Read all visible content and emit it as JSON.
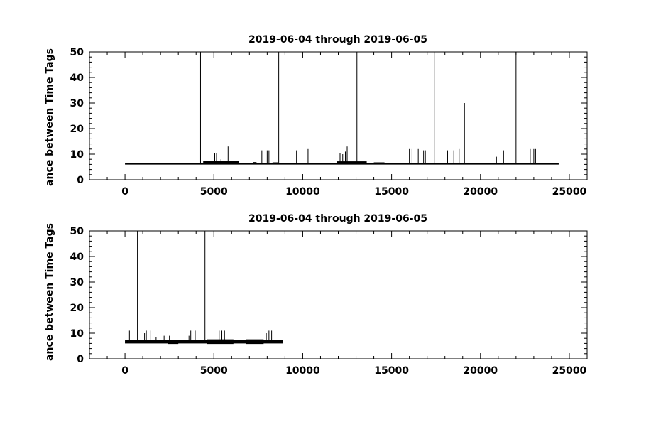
{
  "chart_data": [
    {
      "type": "line",
      "title": "2019-06-04 through 2019-06-05",
      "ylabel": "ance between Time Tags",
      "xlim": [
        -2000,
        26000
      ],
      "ylim": [
        0,
        50
      ],
      "x_ticks": [
        "0",
        "5000",
        "10000",
        "15000",
        "20000",
        "25000"
      ],
      "y_ticks": [
        "0",
        "10",
        "20",
        "30",
        "40",
        "50"
      ],
      "baseline": {
        "x_start": 0,
        "x_end": 24400,
        "y": 6.2
      },
      "spikes": [
        {
          "x": 4250,
          "y": 50
        },
        {
          "x": 8650,
          "y": 50
        },
        {
          "x": 13050,
          "y": 50
        },
        {
          "x": 17400,
          "y": 50
        },
        {
          "x": 22000,
          "y": 50
        },
        {
          "x": 19100,
          "y": 30
        },
        {
          "x": 5800,
          "y": 13
        },
        {
          "x": 12500,
          "y": 13
        },
        {
          "x": 5050,
          "y": 10.5
        },
        {
          "x": 5150,
          "y": 10.5
        },
        {
          "x": 5400,
          "y": 8
        },
        {
          "x": 7700,
          "y": 11.5
        },
        {
          "x": 8000,
          "y": 11.5
        },
        {
          "x": 8100,
          "y": 11.5
        },
        {
          "x": 9650,
          "y": 11.5
        },
        {
          "x": 10300,
          "y": 12
        },
        {
          "x": 12100,
          "y": 10.5
        },
        {
          "x": 12250,
          "y": 10
        },
        {
          "x": 12400,
          "y": 11
        },
        {
          "x": 16000,
          "y": 12
        },
        {
          "x": 16150,
          "y": 12
        },
        {
          "x": 16500,
          "y": 12
        },
        {
          "x": 16800,
          "y": 11.5
        },
        {
          "x": 16900,
          "y": 11.5
        },
        {
          "x": 18150,
          "y": 11.5
        },
        {
          "x": 18500,
          "y": 11.5
        },
        {
          "x": 18800,
          "y": 12
        },
        {
          "x": 20900,
          "y": 9
        },
        {
          "x": 21300,
          "y": 11.5
        },
        {
          "x": 22800,
          "y": 12
        },
        {
          "x": 23000,
          "y": 12
        },
        {
          "x": 23100,
          "y": 12
        }
      ],
      "noise_bands": [
        {
          "x_start": 4400,
          "x_end": 6400,
          "y_low": 6.2,
          "y_high": 7.4
        },
        {
          "x_start": 7200,
          "x_end": 7400,
          "y_low": 6.2,
          "y_high": 6.9
        },
        {
          "x_start": 8300,
          "x_end": 8600,
          "y_low": 6.2,
          "y_high": 6.8
        },
        {
          "x_start": 11900,
          "x_end": 13600,
          "y_low": 6.2,
          "y_high": 7.2
        },
        {
          "x_start": 14000,
          "x_end": 14600,
          "y_low": 6.2,
          "y_high": 6.8
        }
      ]
    },
    {
      "type": "line",
      "title": "2019-06-04 through 2019-06-05",
      "ylabel": "ance between Time Tags",
      "xlim": [
        -2000,
        26000
      ],
      "ylim": [
        0,
        50
      ],
      "x_ticks": [
        "0",
        "5000",
        "10000",
        "15000",
        "20000",
        "25000"
      ],
      "y_ticks": [
        "0",
        "10",
        "20",
        "30",
        "40",
        "50"
      ],
      "baseline": {
        "x_start": 0,
        "x_end": 8900,
        "y": 6.5
      },
      "spikes": [
        {
          "x": 700,
          "y": 50
        },
        {
          "x": 4500,
          "y": 50
        },
        {
          "x": 250,
          "y": 11
        },
        {
          "x": 1100,
          "y": 10
        },
        {
          "x": 1200,
          "y": 11
        },
        {
          "x": 1450,
          "y": 11
        },
        {
          "x": 1750,
          "y": 8.5
        },
        {
          "x": 2200,
          "y": 9
        },
        {
          "x": 2500,
          "y": 9
        },
        {
          "x": 3600,
          "y": 9
        },
        {
          "x": 3700,
          "y": 11
        },
        {
          "x": 3950,
          "y": 11
        },
        {
          "x": 5300,
          "y": 11
        },
        {
          "x": 5450,
          "y": 11
        },
        {
          "x": 5600,
          "y": 11
        },
        {
          "x": 7950,
          "y": 10
        },
        {
          "x": 8100,
          "y": 11
        },
        {
          "x": 8250,
          "y": 11
        }
      ],
      "noise_bands": [
        {
          "x_start": 0,
          "x_end": 8900,
          "y_low": 6.0,
          "y_high": 7.3
        },
        {
          "x_start": 4600,
          "x_end": 6100,
          "y_low": 5.8,
          "y_high": 7.6
        },
        {
          "x_start": 2400,
          "x_end": 3000,
          "y_low": 5.8,
          "y_high": 7.0
        },
        {
          "x_start": 6800,
          "x_end": 7800,
          "y_low": 5.8,
          "y_high": 7.6
        }
      ]
    }
  ]
}
